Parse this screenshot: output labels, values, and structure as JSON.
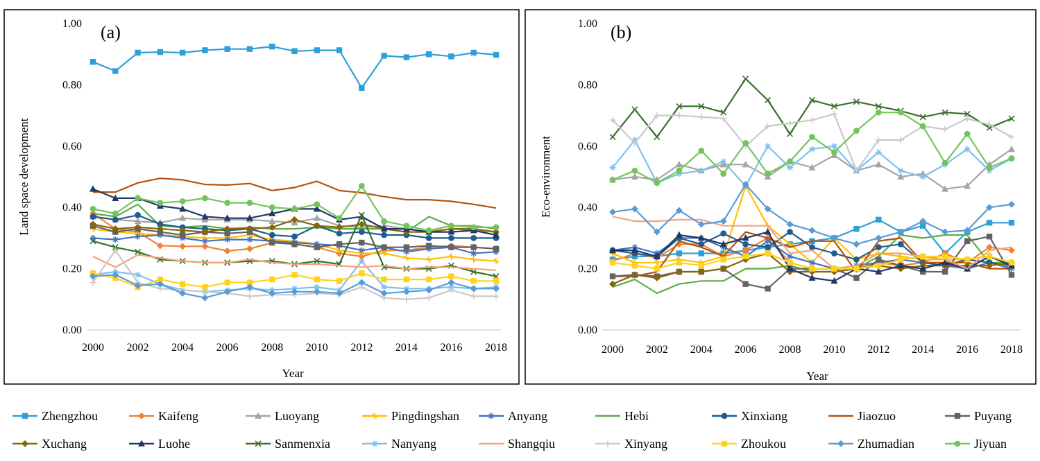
{
  "legend": [
    "Zhengzhou",
    "Kaifeng",
    "Luoyang",
    "Pingdingshan",
    "Anyang",
    "Hebi",
    "Xinxiang",
    "Jiaozuo",
    "Puyang",
    "Xuchang",
    "Luohe",
    "Sanmenxia",
    "Nanyang",
    "Shangqiu",
    "Xinyang",
    "Zhoukou",
    "Zhumadian",
    "Jiyuan"
  ],
  "series_styles": [
    {
      "name": "Zhengzhou",
      "color": "#2e9fd8",
      "marker": "square"
    },
    {
      "name": "Kaifeng",
      "color": "#f2822f",
      "marker": "diamond"
    },
    {
      "name": "Luoyang",
      "color": "#a5a5a5",
      "marker": "triangle"
    },
    {
      "name": "Pingdingshan",
      "color": "#ffc000",
      "marker": "cross"
    },
    {
      "name": "Anyang",
      "color": "#4472c4",
      "marker": "star"
    },
    {
      "name": "Hebi",
      "color": "#5aae45",
      "marker": "none"
    },
    {
      "name": "Xinxiang",
      "color": "#1f5d8f",
      "marker": "circle"
    },
    {
      "name": "Jiaozuo",
      "color": "#b5520f",
      "marker": "none"
    },
    {
      "name": "Puyang",
      "color": "#636363",
      "marker": "square"
    },
    {
      "name": "Xuchang",
      "color": "#8a6508",
      "marker": "diamond"
    },
    {
      "name": "Luohe",
      "color": "#203864",
      "marker": "triangle"
    },
    {
      "name": "Sanmenxia",
      "color": "#38702a",
      "marker": "x"
    },
    {
      "name": "Nanyang",
      "color": "#7fbfef",
      "marker": "star"
    },
    {
      "name": "Shangqiu",
      "color": "#f4a37a",
      "marker": "none"
    },
    {
      "name": "Xinyang",
      "color": "#c9c9c9",
      "marker": "plus"
    },
    {
      "name": "Zhoukou",
      "color": "#ffd21f",
      "marker": "square"
    },
    {
      "name": "Zhumadian",
      "color": "#5b9bd5",
      "marker": "diamond"
    },
    {
      "name": "Jiyuan",
      "color": "#73c45c",
      "marker": "circle"
    }
  ],
  "chart_data": [
    {
      "type": "line",
      "panel": "(a)",
      "xlabel": "Year",
      "ylabel": "Land space development",
      "ylim": [
        0,
        1
      ],
      "yticks": [
        "0.00",
        "0.20",
        "0.40",
        "0.60",
        "0.80",
        "1.00"
      ],
      "xticks": [
        "2000",
        "2002",
        "2004",
        "2006",
        "2008",
        "2010",
        "2012",
        "2014",
        "2016",
        "2018"
      ],
      "x": [
        2000,
        2001,
        2002,
        2003,
        2004,
        2005,
        2006,
        2007,
        2008,
        2009,
        2010,
        2011,
        2012,
        2013,
        2014,
        2015,
        2016,
        2017,
        2018
      ],
      "series": [
        {
          "name": "Zhengzhou",
          "values": [
            0.875,
            0.845,
            0.905,
            0.907,
            0.905,
            0.913,
            0.917,
            0.917,
            0.925,
            0.91,
            0.913,
            0.913,
            0.79,
            0.895,
            0.89,
            0.9,
            0.893,
            0.905,
            0.898
          ]
        },
        {
          "name": "Kaifeng",
          "values": [
            0.38,
            0.33,
            0.32,
            0.275,
            0.273,
            0.273,
            0.258,
            0.265,
            0.285,
            0.28,
            0.27,
            0.25,
            0.24,
            0.26,
            0.26,
            0.27,
            0.275,
            0.27,
            0.265
          ]
        },
        {
          "name": "Luoyang",
          "values": [
            0.37,
            0.36,
            0.355,
            0.35,
            0.365,
            0.36,
            0.36,
            0.36,
            0.355,
            0.35,
            0.365,
            0.34,
            0.335,
            0.34,
            0.33,
            0.32,
            0.33,
            0.325,
            0.32
          ]
        },
        {
          "name": "Pingdingshan",
          "values": [
            0.33,
            0.32,
            0.315,
            0.31,
            0.305,
            0.3,
            0.3,
            0.31,
            0.295,
            0.29,
            0.28,
            0.26,
            0.25,
            0.25,
            0.235,
            0.23,
            0.24,
            0.23,
            0.225
          ]
        },
        {
          "name": "Anyang",
          "values": [
            0.3,
            0.295,
            0.305,
            0.31,
            0.3,
            0.29,
            0.295,
            0.295,
            0.29,
            0.285,
            0.28,
            0.275,
            0.26,
            0.27,
            0.255,
            0.265,
            0.27,
            0.25,
            0.255
          ]
        },
        {
          "name": "Hebi",
          "values": [
            0.38,
            0.37,
            0.41,
            0.34,
            0.335,
            0.34,
            0.33,
            0.335,
            0.33,
            0.33,
            0.335,
            0.33,
            0.33,
            0.33,
            0.32,
            0.37,
            0.34,
            0.34,
            0.33
          ]
        },
        {
          "name": "Xinxiang",
          "values": [
            0.37,
            0.36,
            0.375,
            0.345,
            0.335,
            0.33,
            0.325,
            0.33,
            0.31,
            0.305,
            0.34,
            0.315,
            0.32,
            0.31,
            0.31,
            0.3,
            0.3,
            0.3,
            0.3
          ]
        },
        {
          "name": "Jiaozuo",
          "values": [
            0.45,
            0.45,
            0.48,
            0.495,
            0.49,
            0.475,
            0.473,
            0.478,
            0.455,
            0.465,
            0.485,
            0.455,
            0.448,
            0.435,
            0.425,
            0.425,
            0.42,
            0.41,
            0.398
          ]
        },
        {
          "name": "Puyang",
          "values": [
            0.34,
            0.32,
            0.33,
            0.32,
            0.31,
            0.32,
            0.315,
            0.32,
            0.285,
            0.28,
            0.27,
            0.28,
            0.285,
            0.27,
            0.27,
            0.275,
            0.27,
            0.27,
            0.265
          ]
        },
        {
          "name": "Xuchang",
          "values": [
            0.345,
            0.33,
            0.335,
            0.33,
            0.325,
            0.32,
            0.33,
            0.33,
            0.335,
            0.36,
            0.34,
            0.335,
            0.345,
            0.33,
            0.32,
            0.32,
            0.33,
            0.33,
            0.32
          ]
        },
        {
          "name": "Luohe",
          "values": [
            0.46,
            0.43,
            0.43,
            0.405,
            0.395,
            0.37,
            0.365,
            0.365,
            0.38,
            0.395,
            0.395,
            0.36,
            0.37,
            0.33,
            0.33,
            0.32,
            0.32,
            0.325,
            0.31
          ]
        },
        {
          "name": "Sanmenxia",
          "values": [
            0.29,
            0.27,
            0.255,
            0.23,
            0.225,
            0.22,
            0.22,
            0.225,
            0.225,
            0.215,
            0.225,
            0.215,
            0.375,
            0.205,
            0.2,
            0.2,
            0.21,
            0.19,
            0.175
          ]
        },
        {
          "name": "Nanyang",
          "values": [
            0.18,
            0.19,
            0.18,
            0.15,
            0.13,
            0.125,
            0.13,
            0.135,
            0.13,
            0.135,
            0.14,
            0.13,
            0.225,
            0.14,
            0.135,
            0.135,
            0.14,
            0.135,
            0.14
          ]
        },
        {
          "name": "Shangqiu",
          "values": [
            0.24,
            0.205,
            0.245,
            0.235,
            0.225,
            0.22,
            0.22,
            0.23,
            0.22,
            0.215,
            0.215,
            0.21,
            0.205,
            0.21,
            0.2,
            0.205,
            0.205,
            0.2,
            0.195
          ]
        },
        {
          "name": "Xinyang",
          "values": [
            0.155,
            0.26,
            0.155,
            0.135,
            0.13,
            0.125,
            0.12,
            0.11,
            0.115,
            0.115,
            0.12,
            0.115,
            0.14,
            0.105,
            0.1,
            0.105,
            0.13,
            0.11,
            0.11
          ]
        },
        {
          "name": "Zhoukou",
          "values": [
            0.185,
            0.17,
            0.14,
            0.165,
            0.15,
            0.14,
            0.155,
            0.155,
            0.165,
            0.18,
            0.165,
            0.16,
            0.185,
            0.165,
            0.165,
            0.165,
            0.175,
            0.16,
            0.16
          ]
        },
        {
          "name": "Zhumadian",
          "values": [
            0.175,
            0.18,
            0.145,
            0.15,
            0.12,
            0.105,
            0.125,
            0.14,
            0.12,
            0.125,
            0.125,
            0.12,
            0.155,
            0.12,
            0.125,
            0.13,
            0.155,
            0.135,
            0.135
          ]
        },
        {
          "name": "Jiyuan",
          "values": [
            0.395,
            0.38,
            0.43,
            0.415,
            0.42,
            0.43,
            0.415,
            0.415,
            0.4,
            0.395,
            0.41,
            0.365,
            0.47,
            0.355,
            0.34,
            0.325,
            0.34,
            0.335,
            0.335
          ]
        }
      ]
    },
    {
      "type": "line",
      "panel": "(b)",
      "xlabel": "Year",
      "ylabel": "Eco-environment",
      "ylim": [
        0,
        1
      ],
      "yticks": [
        "0.00",
        "0.20",
        "0.40",
        "0.60",
        "0.80",
        "1.00"
      ],
      "xticks": [
        "2000",
        "2002",
        "2004",
        "2006",
        "2008",
        "2010",
        "2012",
        "2014",
        "2016",
        "2018"
      ],
      "x": [
        2000,
        2001,
        2002,
        2003,
        2004,
        2005,
        2006,
        2007,
        2008,
        2009,
        2010,
        2011,
        2012,
        2013,
        2014,
        2015,
        2016,
        2017,
        2018
      ],
      "series": [
        {
          "name": "Zhengzhou",
          "values": [
            0.23,
            0.24,
            0.24,
            0.25,
            0.25,
            0.25,
            0.26,
            0.27,
            0.28,
            0.29,
            0.3,
            0.33,
            0.36,
            0.32,
            0.34,
            0.25,
            0.32,
            0.35,
            0.35
          ]
        },
        {
          "name": "Kaifeng",
          "values": [
            0.225,
            0.25,
            0.235,
            0.28,
            0.28,
            0.24,
            0.26,
            0.3,
            0.22,
            0.2,
            0.2,
            0.2,
            0.22,
            0.21,
            0.22,
            0.25,
            0.22,
            0.27,
            0.26
          ]
        },
        {
          "name": "Luoyang",
          "values": [
            0.49,
            0.5,
            0.49,
            0.54,
            0.52,
            0.54,
            0.54,
            0.5,
            0.55,
            0.53,
            0.57,
            0.52,
            0.54,
            0.5,
            0.51,
            0.46,
            0.47,
            0.54,
            0.59
          ]
        },
        {
          "name": "Pingdingshan",
          "values": [
            0.25,
            0.22,
            0.22,
            0.23,
            0.22,
            0.24,
            0.47,
            0.34,
            0.28,
            0.22,
            0.3,
            0.23,
            0.25,
            0.24,
            0.23,
            0.23,
            0.23,
            0.24,
            0.22
          ]
        },
        {
          "name": "Anyang",
          "values": [
            0.26,
            0.27,
            0.25,
            0.3,
            0.3,
            0.27,
            0.24,
            0.29,
            0.24,
            0.22,
            0.2,
            0.21,
            0.22,
            0.23,
            0.22,
            0.21,
            0.2,
            0.22,
            0.2
          ]
        },
        {
          "name": "Hebi",
          "values": [
            0.14,
            0.165,
            0.12,
            0.15,
            0.16,
            0.16,
            0.2,
            0.2,
            0.21,
            0.19,
            0.19,
            0.2,
            0.24,
            0.31,
            0.3,
            0.31,
            0.31,
            0.22,
            0.22
          ]
        },
        {
          "name": "Xinxiang",
          "values": [
            0.26,
            0.25,
            0.24,
            0.3,
            0.28,
            0.315,
            0.28,
            0.27,
            0.32,
            0.27,
            0.25,
            0.23,
            0.27,
            0.28,
            0.22,
            0.21,
            0.23,
            0.22,
            0.21
          ]
        },
        {
          "name": "Jiaozuo",
          "values": [
            0.175,
            0.175,
            0.19,
            0.29,
            0.27,
            0.24,
            0.32,
            0.3,
            0.27,
            0.29,
            0.29,
            0.19,
            0.29,
            0.3,
            0.22,
            0.22,
            0.22,
            0.2,
            0.2
          ]
        },
        {
          "name": "Puyang",
          "values": [
            0.175,
            0.18,
            0.175,
            0.19,
            0.19,
            0.2,
            0.15,
            0.135,
            0.2,
            0.2,
            0.2,
            0.17,
            0.23,
            0.21,
            0.19,
            0.19,
            0.29,
            0.305,
            0.18
          ]
        },
        {
          "name": "Xuchang",
          "values": [
            0.15,
            0.18,
            0.17,
            0.19,
            0.19,
            0.2,
            0.23,
            0.25,
            0.19,
            0.19,
            0.19,
            0.2,
            0.21,
            0.2,
            0.21,
            0.21,
            0.21,
            0.21,
            0.22
          ]
        },
        {
          "name": "Luohe",
          "values": [
            0.26,
            0.26,
            0.24,
            0.31,
            0.3,
            0.28,
            0.3,
            0.32,
            0.2,
            0.17,
            0.16,
            0.2,
            0.19,
            0.21,
            0.2,
            0.22,
            0.2,
            0.24,
            0.21
          ]
        },
        {
          "name": "Sanmenxia",
          "values": [
            0.63,
            0.72,
            0.63,
            0.73,
            0.73,
            0.71,
            0.82,
            0.75,
            0.64,
            0.75,
            0.73,
            0.745,
            0.73,
            0.715,
            0.695,
            0.71,
            0.705,
            0.66,
            0.69
          ]
        },
        {
          "name": "Nanyang",
          "values": [
            0.53,
            0.62,
            0.48,
            0.51,
            0.52,
            0.55,
            0.47,
            0.6,
            0.53,
            0.59,
            0.6,
            0.52,
            0.58,
            0.52,
            0.5,
            0.54,
            0.59,
            0.52,
            0.56
          ]
        },
        {
          "name": "Shangqiu",
          "values": [
            0.37,
            0.355,
            0.355,
            0.36,
            0.36,
            0.34,
            0.34,
            0.34,
            0.25,
            0.26,
            0.2,
            0.21,
            0.25,
            0.25,
            0.24,
            0.23,
            0.2,
            0.26,
            0.27
          ]
        },
        {
          "name": "Xinyang",
          "values": [
            0.685,
            0.61,
            0.7,
            0.7,
            0.695,
            0.69,
            0.6,
            0.665,
            0.675,
            0.685,
            0.705,
            0.52,
            0.62,
            0.62,
            0.665,
            0.655,
            0.69,
            0.67,
            0.63
          ]
        },
        {
          "name": "Zhoukou",
          "values": [
            0.22,
            0.21,
            0.2,
            0.22,
            0.21,
            0.23,
            0.24,
            0.25,
            0.22,
            0.2,
            0.2,
            0.2,
            0.21,
            0.23,
            0.24,
            0.24,
            0.23,
            0.24,
            0.22
          ]
        },
        {
          "name": "Zhumadian",
          "values": [
            0.385,
            0.395,
            0.32,
            0.39,
            0.345,
            0.355,
            0.475,
            0.395,
            0.345,
            0.325,
            0.3,
            0.28,
            0.3,
            0.32,
            0.355,
            0.32,
            0.325,
            0.4,
            0.41
          ]
        },
        {
          "name": "Jiyuan",
          "values": [
            0.49,
            0.52,
            0.48,
            0.52,
            0.585,
            0.51,
            0.61,
            0.51,
            0.55,
            0.63,
            0.58,
            0.65,
            0.71,
            0.71,
            0.665,
            0.545,
            0.64,
            0.53,
            0.56
          ]
        }
      ]
    }
  ]
}
